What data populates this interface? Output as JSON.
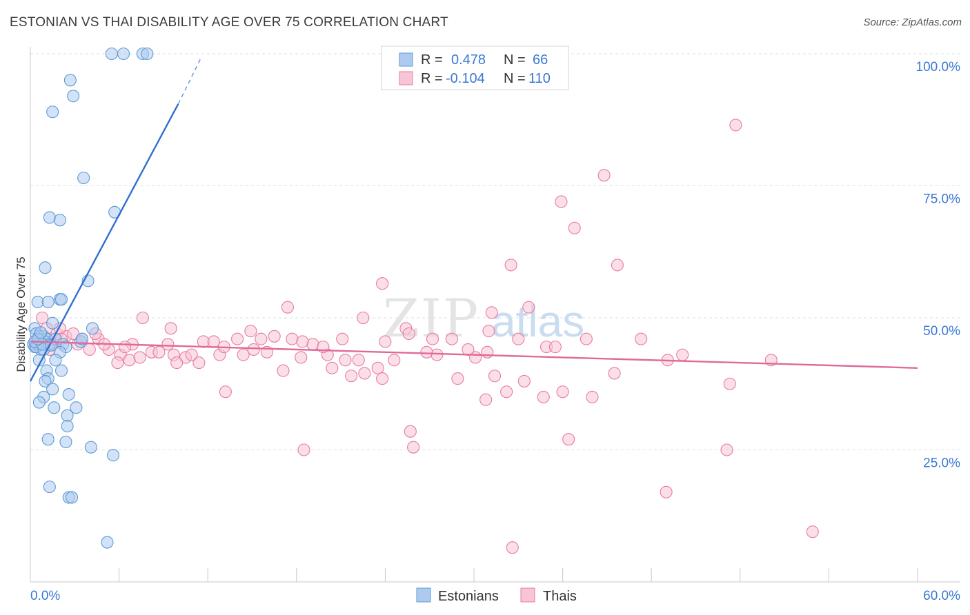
{
  "title": "ESTONIAN VS THAI DISABILITY AGE OVER 75 CORRELATION CHART",
  "source": "Source: ZipAtlas.com",
  "watermark": {
    "zip": "ZIP",
    "atlas": "atlas"
  },
  "chart_data": {
    "type": "scatter",
    "xlabel": "",
    "ylabel": "Disability Age Over 75",
    "xlim": [
      0,
      60
    ],
    "ylim": [
      0,
      100
    ],
    "x_tick_labels": [
      "0.0%",
      "60.0%"
    ],
    "y_ticks": [
      25,
      50,
      75,
      100
    ],
    "y_tick_labels": [
      "25.0%",
      "50.0%",
      "75.0%",
      "100.0%"
    ],
    "grid": true,
    "legend": {
      "placement": "top-center",
      "entries": [
        {
          "series": "Estonians",
          "r_label": "R =",
          "r_value": "0.478",
          "n_label": "N =",
          "n_value": "66"
        },
        {
          "series": "Thais",
          "r_label": "R =",
          "r_value": "-0.104",
          "n_label": "N =",
          "n_value": "110"
        }
      ]
    },
    "bottom_legend": [
      "Estonians",
      "Thais"
    ],
    "series": [
      {
        "name": "Estonians",
        "color": "#5b9bd5",
        "fill": "#aecbef",
        "trend": {
          "x": [
            0.0,
            10.0
          ],
          "y": [
            38.0,
            90.5
          ],
          "dashed_to": [
            11.5,
            99.0
          ]
        },
        "points": [
          [
            5.5,
            100
          ],
          [
            6.3,
            100
          ],
          [
            7.6,
            100
          ],
          [
            7.9,
            100
          ],
          [
            2.7,
            95
          ],
          [
            2.9,
            92
          ],
          [
            1.5,
            89
          ],
          [
            3.6,
            76.5
          ],
          [
            5.7,
            70
          ],
          [
            1.3,
            69
          ],
          [
            2.0,
            68.5
          ],
          [
            1.0,
            59.5
          ],
          [
            3.9,
            57
          ],
          [
            0.5,
            53
          ],
          [
            1.2,
            53
          ],
          [
            2.0,
            53.5
          ],
          [
            2.1,
            53.5
          ],
          [
            1.5,
            49
          ],
          [
            4.2,
            48
          ],
          [
            0.3,
            48
          ],
          [
            0.4,
            47
          ],
          [
            0.6,
            46.5
          ],
          [
            0.8,
            46
          ],
          [
            0.9,
            46.5
          ],
          [
            1.1,
            46
          ],
          [
            0.2,
            45
          ],
          [
            0.3,
            44.5
          ],
          [
            0.5,
            45
          ],
          [
            0.7,
            44
          ],
          [
            1.0,
            45.5
          ],
          [
            1.3,
            45
          ],
          [
            1.7,
            46
          ],
          [
            2.2,
            45
          ],
          [
            2.4,
            44.5
          ],
          [
            3.4,
            45.5
          ],
          [
            0.4,
            44.5
          ],
          [
            0.9,
            44
          ],
          [
            2.0,
            43.5
          ],
          [
            0.6,
            42
          ],
          [
            1.7,
            42
          ],
          [
            1.1,
            40
          ],
          [
            2.1,
            40
          ],
          [
            1.2,
            38.5
          ],
          [
            1.0,
            38
          ],
          [
            1.5,
            36.5
          ],
          [
            2.6,
            35.5
          ],
          [
            0.9,
            35
          ],
          [
            0.6,
            34
          ],
          [
            1.6,
            33
          ],
          [
            3.1,
            33
          ],
          [
            2.5,
            31.5
          ],
          [
            2.5,
            29.5
          ],
          [
            1.2,
            27
          ],
          [
            2.4,
            26.5
          ],
          [
            4.1,
            25.5
          ],
          [
            5.6,
            24
          ],
          [
            1.3,
            18
          ],
          [
            2.6,
            16
          ],
          [
            2.8,
            16
          ],
          [
            5.2,
            7.5
          ],
          [
            0.3,
            45.5
          ],
          [
            0.8,
            45
          ],
          [
            1.4,
            44.8
          ],
          [
            0.5,
            46
          ],
          [
            3.5,
            46
          ],
          [
            0.7,
            47.2
          ]
        ]
      },
      {
        "name": "Thais",
        "color": "#e87aa0",
        "fill": "#f7c5d6",
        "trend": {
          "x": [
            0.0,
            60.0
          ],
          "y": [
            45.5,
            40.5
          ]
        },
        "points": [
          [
            47.7,
            86.5
          ],
          [
            38.8,
            77
          ],
          [
            35.9,
            72
          ],
          [
            36.8,
            67
          ],
          [
            32.5,
            60
          ],
          [
            39.7,
            60
          ],
          [
            23.8,
            56.5
          ],
          [
            17.4,
            52
          ],
          [
            31.2,
            51
          ],
          [
            33.7,
            52
          ],
          [
            22.5,
            50
          ],
          [
            7.6,
            50
          ],
          [
            0.8,
            50
          ],
          [
            1.1,
            48
          ],
          [
            1.8,
            47
          ],
          [
            2.4,
            46.5
          ],
          [
            2.9,
            47
          ],
          [
            3.5,
            46
          ],
          [
            4.6,
            46
          ],
          [
            1.5,
            45
          ],
          [
            6.9,
            45
          ],
          [
            9.3,
            45
          ],
          [
            11.7,
            45.5
          ],
          [
            12.4,
            45.5
          ],
          [
            14.0,
            46
          ],
          [
            15.6,
            46
          ],
          [
            16.5,
            46.5
          ],
          [
            17.7,
            46
          ],
          [
            19.1,
            45
          ],
          [
            21.1,
            46
          ],
          [
            24.0,
            45.5
          ],
          [
            25.4,
            48
          ],
          [
            27.2,
            46
          ],
          [
            28.5,
            46
          ],
          [
            31.0,
            47.5
          ],
          [
            34.9,
            44.5
          ],
          [
            37.6,
            46
          ],
          [
            4.0,
            44
          ],
          [
            5.3,
            44
          ],
          [
            6.1,
            43
          ],
          [
            8.2,
            43.5
          ],
          [
            9.7,
            43
          ],
          [
            10.5,
            42.5
          ],
          [
            12.8,
            43
          ],
          [
            14.4,
            43
          ],
          [
            15.1,
            44
          ],
          [
            16.0,
            43.5
          ],
          [
            18.3,
            42.5
          ],
          [
            20.1,
            43
          ],
          [
            22.2,
            42
          ],
          [
            24.6,
            42
          ],
          [
            27.5,
            43
          ],
          [
            30.1,
            42.5
          ],
          [
            30.9,
            43.5
          ],
          [
            43.1,
            42
          ],
          [
            50.1,
            42
          ],
          [
            5.9,
            41.5
          ],
          [
            6.7,
            42
          ],
          [
            7.4,
            42.5
          ],
          [
            9.9,
            41.5
          ],
          [
            11.4,
            41.5
          ],
          [
            17.1,
            40
          ],
          [
            20.4,
            40.5
          ],
          [
            21.7,
            39
          ],
          [
            22.6,
            39.5
          ],
          [
            23.5,
            40.5
          ],
          [
            28.9,
            38.5
          ],
          [
            31.4,
            39
          ],
          [
            23.8,
            38.5
          ],
          [
            33.4,
            38
          ],
          [
            39.5,
            39.5
          ],
          [
            47.3,
            37.5
          ],
          [
            13.2,
            36
          ],
          [
            30.8,
            34.5
          ],
          [
            32.2,
            36
          ],
          [
            34.7,
            35
          ],
          [
            36.0,
            36
          ],
          [
            38.0,
            35
          ],
          [
            25.7,
            28.5
          ],
          [
            25.9,
            25.5
          ],
          [
            36.4,
            27
          ],
          [
            18.5,
            25
          ],
          [
            47.1,
            25
          ],
          [
            43.0,
            17
          ],
          [
            52.9,
            9.5
          ],
          [
            32.6,
            6.5
          ],
          [
            4.4,
            47
          ],
          [
            2.0,
            48
          ],
          [
            9.5,
            48
          ],
          [
            14.9,
            47.5
          ],
          [
            25.6,
            47
          ],
          [
            33.0,
            46
          ],
          [
            41.3,
            46
          ],
          [
            3.2,
            45
          ],
          [
            13.1,
            44.5
          ],
          [
            19.8,
            44.5
          ],
          [
            29.6,
            44
          ],
          [
            1.3,
            44
          ],
          [
            8.7,
            43.5
          ],
          [
            26.8,
            43.5
          ],
          [
            10.9,
            43
          ],
          [
            21.3,
            42
          ],
          [
            2.1,
            46
          ],
          [
            5.0,
            45
          ],
          [
            6.4,
            44.5
          ],
          [
            35.5,
            44.5
          ],
          [
            18.4,
            45.5
          ],
          [
            44.1,
            43
          ]
        ]
      }
    ]
  }
}
